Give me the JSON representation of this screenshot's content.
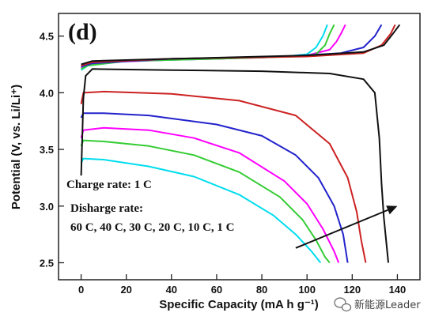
{
  "watermark": {
    "text": "新能源Leader",
    "icon": "wechat-icon"
  },
  "chart_data": {
    "type": "line",
    "panel_label": "(d)",
    "xlabel": "Specific Capacity (mA h g⁻¹)",
    "ylabel": "Potential (V, vs. Li/Li⁺)",
    "xlim": [
      -10,
      150
    ],
    "ylim": [
      2.35,
      4.7
    ],
    "xticks": [
      0,
      20,
      40,
      60,
      80,
      100,
      120,
      140
    ],
    "yticks": [
      2.5,
      3.0,
      3.5,
      4.0,
      4.5
    ],
    "grid": false,
    "annotations": {
      "charge_rate": "Charge rate: 1 C",
      "discharge_rate": "Disharge rate:",
      "rates": "60 C, 40 C, 30 C, 20 C, 10 C, 1 C"
    },
    "arrow": {
      "from": [
        95,
        2.63
      ],
      "to": [
        140,
        3.0
      ]
    },
    "series": [
      {
        "color": "#ff00ff",
        "charge": [
          [
            0,
            4.22
          ],
          [
            2,
            4.25
          ],
          [
            10,
            4.27
          ],
          [
            40,
            4.29
          ],
          [
            80,
            4.31
          ],
          [
            100,
            4.33
          ],
          [
            110,
            4.38
          ],
          [
            113,
            4.45
          ],
          [
            115,
            4.52
          ],
          [
            117,
            4.6
          ]
        ],
        "discharge": [
          [
            0,
            3.6
          ],
          [
            1,
            3.67
          ],
          [
            10,
            3.69
          ],
          [
            30,
            3.67
          ],
          [
            50,
            3.6
          ],
          [
            70,
            3.47
          ],
          [
            90,
            3.22
          ],
          [
            100,
            3.02
          ],
          [
            107,
            2.8
          ],
          [
            112,
            2.6
          ],
          [
            114,
            2.5
          ]
        ]
      },
      {
        "color": "#00ddee",
        "charge": [
          [
            0,
            4.2
          ],
          [
            3,
            4.24
          ],
          [
            20,
            4.28
          ],
          [
            60,
            4.3
          ],
          [
            90,
            4.32
          ],
          [
            100,
            4.34
          ],
          [
            104,
            4.4
          ],
          [
            107,
            4.5
          ],
          [
            109,
            4.6
          ]
        ],
        "discharge": [
          [
            0,
            3.38
          ],
          [
            1,
            3.42
          ],
          [
            10,
            3.41
          ],
          [
            30,
            3.35
          ],
          [
            50,
            3.26
          ],
          [
            70,
            3.1
          ],
          [
            85,
            2.92
          ],
          [
            95,
            2.75
          ],
          [
            102,
            2.6
          ],
          [
            106,
            2.5
          ]
        ]
      },
      {
        "color": "#33cc33",
        "charge": [
          [
            0,
            4.21
          ],
          [
            3,
            4.24
          ],
          [
            20,
            4.28
          ],
          [
            60,
            4.3
          ],
          [
            95,
            4.32
          ],
          [
            104,
            4.34
          ],
          [
            108,
            4.42
          ],
          [
            110,
            4.52
          ],
          [
            112,
            4.6
          ]
        ],
        "discharge": [
          [
            0,
            3.53
          ],
          [
            1,
            3.58
          ],
          [
            10,
            3.57
          ],
          [
            30,
            3.53
          ],
          [
            50,
            3.45
          ],
          [
            70,
            3.3
          ],
          [
            88,
            3.08
          ],
          [
            98,
            2.88
          ],
          [
            104,
            2.7
          ],
          [
            108,
            2.55
          ],
          [
            110,
            2.5
          ]
        ]
      },
      {
        "color": "#2222cc",
        "charge": [
          [
            0,
            4.23
          ],
          [
            5,
            4.26
          ],
          [
            40,
            4.3
          ],
          [
            90,
            4.32
          ],
          [
            115,
            4.35
          ],
          [
            125,
            4.4
          ],
          [
            130,
            4.5
          ],
          [
            133,
            4.6
          ]
        ],
        "discharge": [
          [
            0,
            3.78
          ],
          [
            1,
            3.82
          ],
          [
            10,
            3.82
          ],
          [
            30,
            3.8
          ],
          [
            60,
            3.72
          ],
          [
            80,
            3.62
          ],
          [
            95,
            3.45
          ],
          [
            105,
            3.25
          ],
          [
            112,
            3.0
          ],
          [
            116,
            2.75
          ],
          [
            118,
            2.5
          ]
        ]
      },
      {
        "color": "#cc2222",
        "charge": [
          [
            0,
            4.24
          ],
          [
            5,
            4.27
          ],
          [
            40,
            4.3
          ],
          [
            100,
            4.32
          ],
          [
            125,
            4.35
          ],
          [
            133,
            4.42
          ],
          [
            137,
            4.52
          ],
          [
            139,
            4.6
          ]
        ],
        "discharge": [
          [
            0,
            3.9
          ],
          [
            1,
            4.0
          ],
          [
            10,
            4.01
          ],
          [
            40,
            3.99
          ],
          [
            70,
            3.93
          ],
          [
            95,
            3.8
          ],
          [
            110,
            3.55
          ],
          [
            118,
            3.25
          ],
          [
            122,
            2.95
          ],
          [
            124,
            2.7
          ],
          [
            126,
            2.5
          ]
        ]
      },
      {
        "color": "#111111",
        "charge": [
          [
            0,
            4.25
          ],
          [
            5,
            4.28
          ],
          [
            40,
            4.3
          ],
          [
            100,
            4.33
          ],
          [
            125,
            4.36
          ],
          [
            134,
            4.42
          ],
          [
            138,
            4.52
          ],
          [
            141,
            4.6
          ]
        ],
        "discharge": [
          [
            0,
            3.27
          ],
          [
            0.5,
            3.6
          ],
          [
            1,
            3.95
          ],
          [
            2,
            4.15
          ],
          [
            5,
            4.21
          ],
          [
            40,
            4.2
          ],
          [
            80,
            4.19
          ],
          [
            110,
            4.17
          ],
          [
            125,
            4.12
          ],
          [
            130,
            4.0
          ],
          [
            132,
            3.6
          ],
          [
            133,
            3.2
          ],
          [
            134,
            2.9
          ],
          [
            136,
            2.5
          ]
        ]
      }
    ]
  }
}
